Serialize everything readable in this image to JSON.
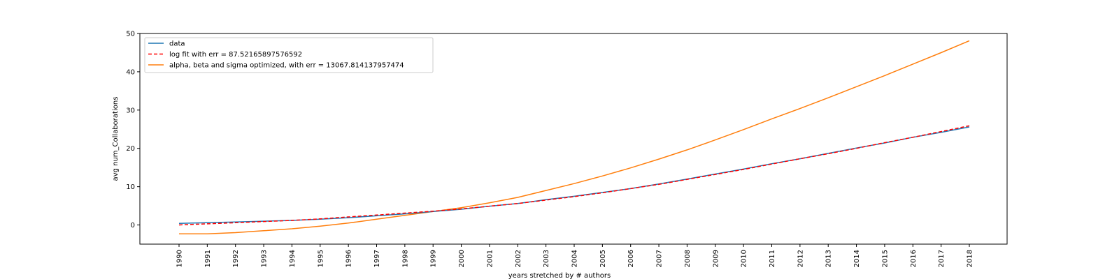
{
  "chart_data": {
    "type": "line",
    "title": "",
    "xlabel": "years stretched by # authors",
    "ylabel": "avg num_Collaborations",
    "xtick_labels": [
      "1990",
      "1991",
      "1992",
      "1993",
      "1994",
      "1995",
      "1996",
      "1997",
      "1998",
      "1999",
      "2000",
      "2001",
      "2002",
      "2003",
      "2004",
      "2005",
      "2006",
      "2007",
      "2008",
      "2009",
      "2010",
      "2011",
      "2012",
      "2013",
      "2014",
      "2015",
      "2016",
      "2017",
      "2018"
    ],
    "ylim": [
      -5,
      50
    ],
    "yticks": [
      0,
      10,
      20,
      30,
      40,
      50
    ],
    "legend_position": "top-left",
    "grid": false,
    "series": [
      {
        "name": "data",
        "color": "#1f77b4",
        "style": "solid",
        "values": [
          0.4,
          0.6,
          0.8,
          1.0,
          1.2,
          1.5,
          1.9,
          2.4,
          2.9,
          3.5,
          4.1,
          4.9,
          5.6,
          6.6,
          7.5,
          8.5,
          9.5,
          10.7,
          12.0,
          13.3,
          14.6,
          16.0,
          17.3,
          18.7,
          20.1,
          21.4,
          22.9,
          24.2,
          25.6
        ]
      },
      {
        "name": "log fit with err = 87.52165897576592",
        "color": "#ff0000",
        "style": "dashed",
        "values": [
          0.0,
          0.3,
          0.6,
          0.9,
          1.2,
          1.6,
          2.1,
          2.6,
          3.1,
          3.6,
          4.2,
          4.9,
          5.6,
          6.5,
          7.4,
          8.4,
          9.5,
          10.6,
          11.9,
          13.2,
          14.5,
          15.9,
          17.3,
          18.6,
          20.0,
          21.5,
          22.9,
          24.4,
          25.9
        ]
      },
      {
        "name": "alpha, beta and sigma optimized, with err = 13067.814137957474",
        "color": "#ff7f0e",
        "style": "solid",
        "values": [
          -2.3,
          -2.3,
          -2.0,
          -1.5,
          -1.0,
          -0.3,
          0.5,
          1.5,
          2.5,
          3.5,
          4.5,
          5.8,
          7.2,
          9.0,
          10.8,
          12.8,
          14.9,
          17.2,
          19.6,
          22.2,
          24.9,
          27.7,
          30.4,
          33.2,
          36.1,
          39.0,
          42.0,
          45.0,
          48.1
        ]
      }
    ]
  }
}
